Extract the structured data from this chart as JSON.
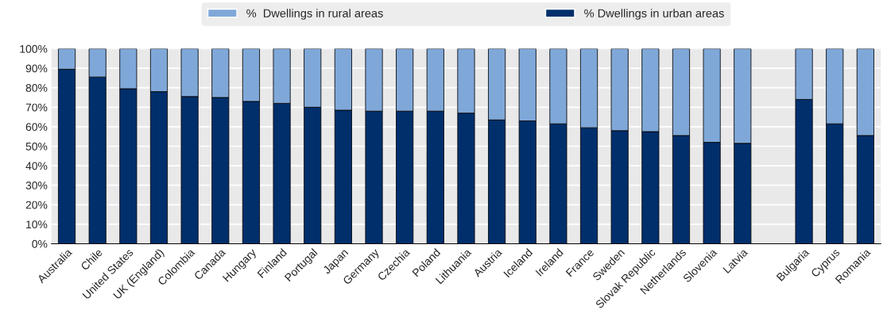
{
  "chart_data": {
    "type": "bar",
    "stacked": true,
    "categories": [
      "Australia",
      "Chile",
      "United States",
      "UK (England)",
      "Colombia",
      "Canada",
      "Hungary",
      "Finland",
      "Portugal",
      "Japan",
      "Germany",
      "Czechia",
      "Poland",
      "Lithuania",
      "Austria",
      "Iceland",
      "Ireland",
      "France",
      "Sweden",
      "Slovak Republic",
      "Netherlands",
      "Slovenia",
      "Latvia",
      null,
      "Bulgaria",
      "Cyprus",
      "Romania"
    ],
    "series": [
      {
        "name": "% Dwellings in urban areas",
        "color": "#002f6c",
        "values": [
          89.5,
          85.5,
          79.5,
          78,
          75.5,
          75,
          73,
          72,
          70,
          68.5,
          68,
          68,
          68,
          67,
          63.5,
          63,
          61.5,
          59.5,
          58,
          57.5,
          55.5,
          52,
          51.5,
          null,
          74,
          61.5,
          55.5
        ]
      },
      {
        "name": "%  Dwellings in rural areas",
        "color": "#7fa8d9",
        "values": [
          10.5,
          14.5,
          20.5,
          22,
          24.5,
          25,
          27,
          28,
          30,
          31.5,
          32,
          32,
          32,
          33,
          36.5,
          37,
          38.5,
          40.5,
          42,
          42.5,
          44.5,
          48,
          48.5,
          null,
          26,
          38.5,
          44.5
        ]
      }
    ],
    "ylim": [
      0,
      100
    ],
    "yticks": [
      {
        "value": 0,
        "label": "0%"
      },
      {
        "value": 10,
        "label": "10%"
      },
      {
        "value": 20,
        "label": "20%"
      },
      {
        "value": 30,
        "label": "30%"
      },
      {
        "value": 40,
        "label": "40%"
      },
      {
        "value": 50,
        "label": "50%"
      },
      {
        "value": 60,
        "label": "60%"
      },
      {
        "value": 70,
        "label": "70%"
      },
      {
        "value": 80,
        "label": "80%"
      },
      {
        "value": 90,
        "label": "90%"
      },
      {
        "value": 100,
        "label": "100%"
      }
    ],
    "grid": "y",
    "legend": "top"
  }
}
